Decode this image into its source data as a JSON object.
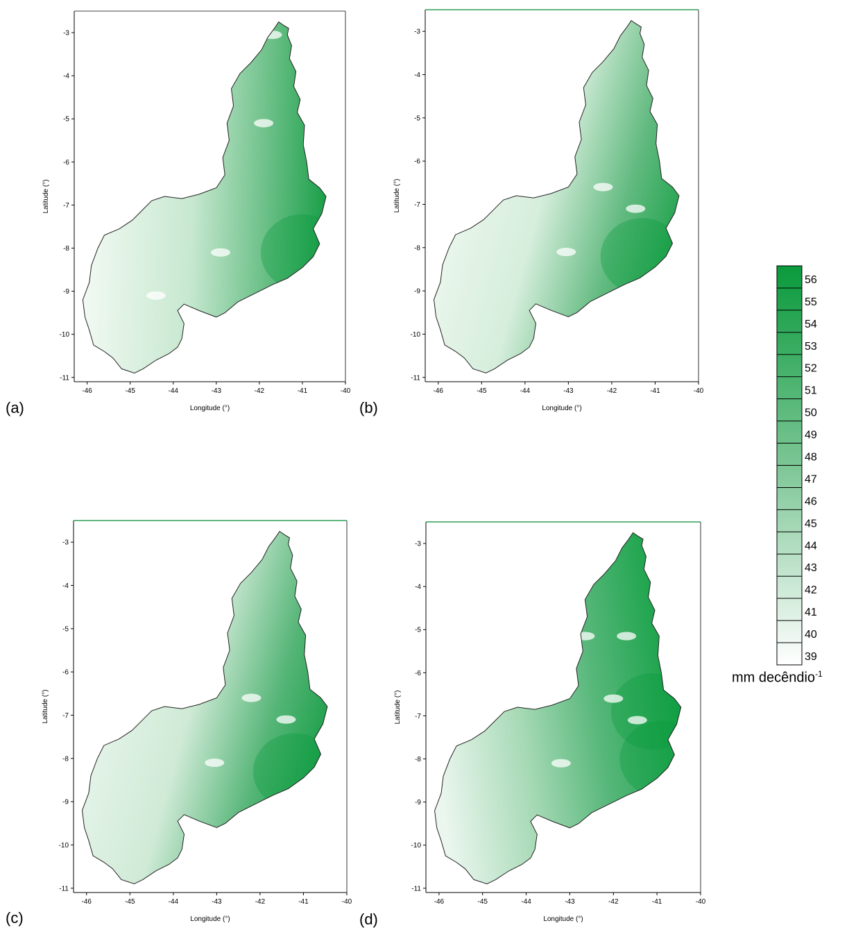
{
  "panels": [
    {
      "letter": "(a)",
      "gradient": "a"
    },
    {
      "letter": "(b)",
      "gradient": "b"
    },
    {
      "letter": "(c)",
      "gradient": "c"
    },
    {
      "letter": "(d)",
      "gradient": "d"
    }
  ],
  "axes": {
    "xlabel": "Longitude (°)",
    "ylabel": "Latitude (°)",
    "x_ticks": [
      "-46",
      "-45",
      "-44",
      "-43",
      "-42",
      "-41",
      "-40"
    ],
    "y_ticks": [
      "-3",
      "-4",
      "-5",
      "-6",
      "-7",
      "-8",
      "-9",
      "-10",
      "-11"
    ]
  },
  "legend": {
    "levels": [
      "56",
      "55",
      "54",
      "53",
      "52",
      "51",
      "50",
      "49",
      "48",
      "47",
      "46",
      "45",
      "44",
      "43",
      "42",
      "41",
      "40",
      "39"
    ],
    "unit_text": "mm decêndio",
    "unit_exponent": "-1",
    "color_high": "#0a9a3c",
    "color_low": "#ffffff"
  }
}
